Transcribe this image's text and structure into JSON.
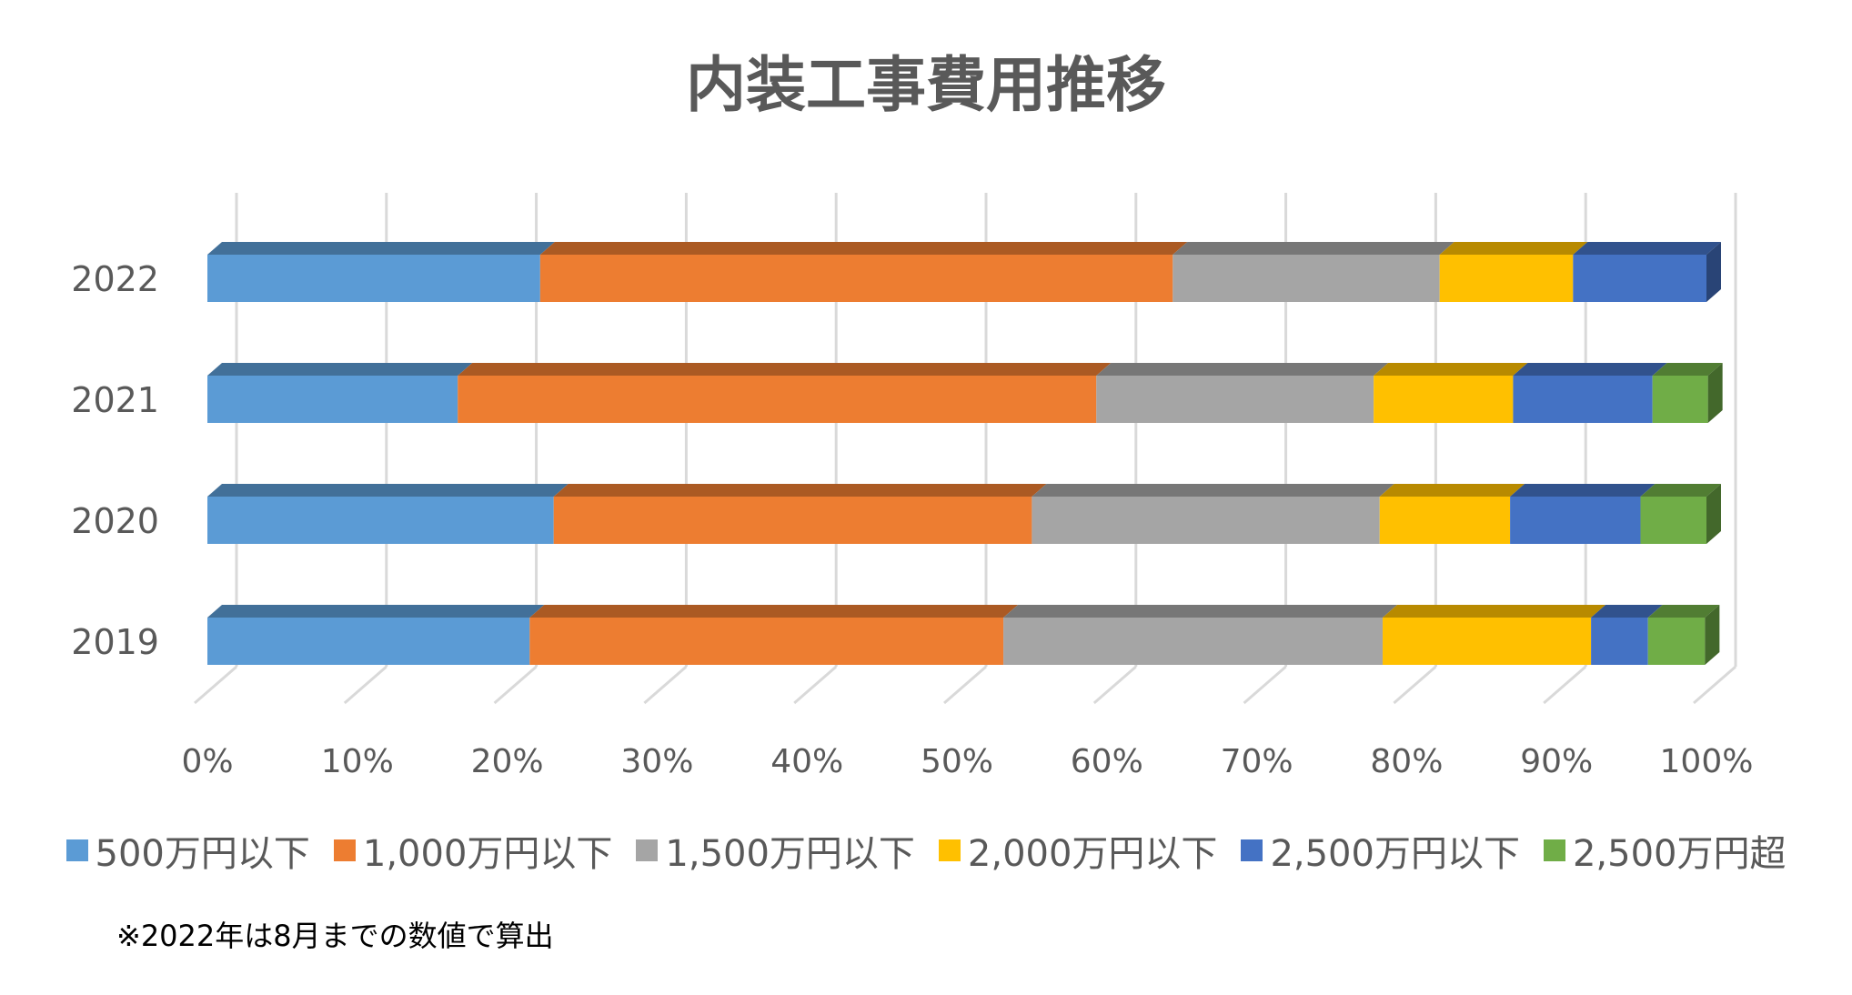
{
  "title": "内装工事費用推移",
  "note": "※2022年は8月までの数値で算出",
  "chart_data": {
    "type": "bar",
    "orientation": "horizontal",
    "stacked": "percent",
    "categories": [
      "2022",
      "2021",
      "2020",
      "2019"
    ],
    "x_ticks": [
      "0%",
      "10%",
      "20%",
      "30%",
      "40%",
      "50%",
      "60%",
      "70%",
      "80%",
      "90%",
      "100%"
    ],
    "xlim": [
      0,
      100
    ],
    "grid": "vertical",
    "legend_position": "bottom",
    "series": [
      {
        "name": "500万円以下",
        "color": "#5B9BD5",
        "values": [
          22.2,
          16.7,
          23.1,
          21.5
        ]
      },
      {
        "name": "1,000万円以下",
        "color": "#ED7D31",
        "values": [
          42.2,
          42.6,
          31.9,
          31.6
        ]
      },
      {
        "name": "1,500万円以下",
        "color": "#A5A5A5",
        "values": [
          17.8,
          18.5,
          23.2,
          25.3
        ]
      },
      {
        "name": "2,000万円以下",
        "color": "#FFC000",
        "values": [
          8.9,
          9.3,
          8.7,
          13.9
        ]
      },
      {
        "name": "2,500万円以下",
        "color": "#4472C4",
        "values": [
          8.9,
          9.3,
          8.7,
          3.8
        ]
      },
      {
        "name": "2,500万円超",
        "color": "#70AD47",
        "values": [
          0,
          3.7,
          4.4,
          3.8
        ]
      }
    ]
  }
}
